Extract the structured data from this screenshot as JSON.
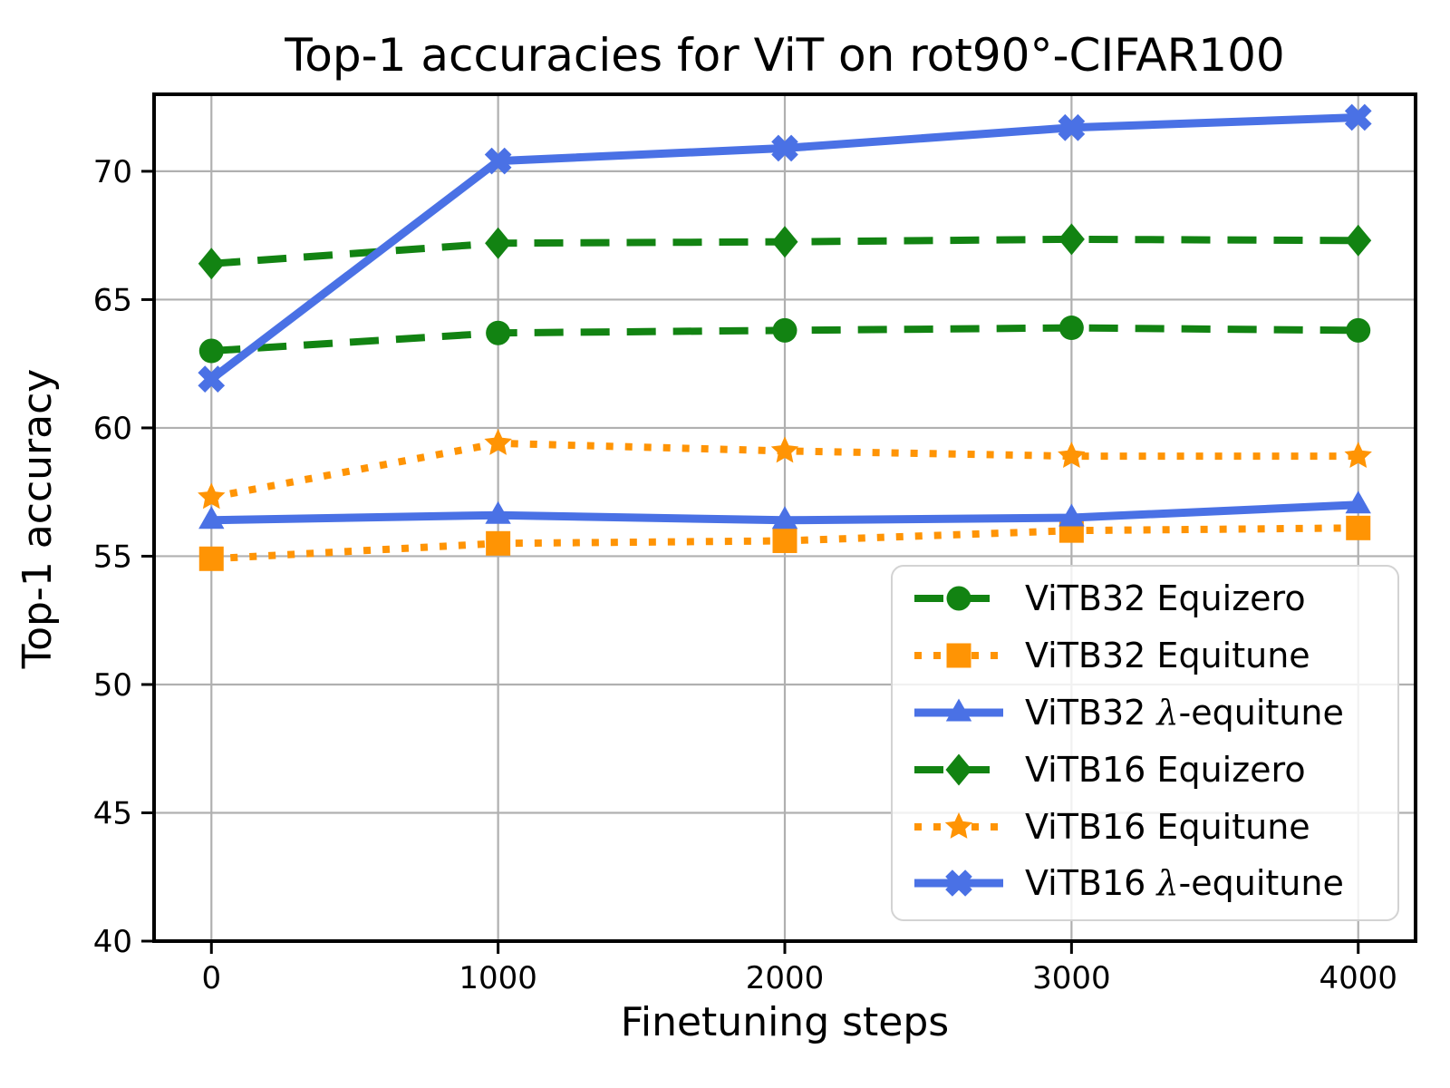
{
  "chart_data": {
    "type": "line",
    "title": "Top-1 accuracies for ViT on rot90°-CIFAR100",
    "xlabel": "Finetuning steps",
    "ylabel": "Top-1 accuracy",
    "x": [
      0,
      1000,
      2000,
      3000,
      4000
    ],
    "x_ticks": [
      "0",
      "1000",
      "2000",
      "3000",
      "4000"
    ],
    "y_ticks": [
      40,
      45,
      50,
      55,
      60,
      65,
      70
    ],
    "xlim": [
      -200,
      4200
    ],
    "ylim": [
      40,
      73
    ],
    "grid": true,
    "grid_color": "#b0b0b0",
    "legend_location": "lower right",
    "series": [
      {
        "name": "ViTB32 Equizero",
        "color": "#128312",
        "linestyle": "dashed",
        "marker": "circle",
        "values": [
          63.0,
          63.7,
          63.8,
          63.9,
          63.8
        ]
      },
      {
        "name": "ViTB32 Equitune",
        "color": "#ff9404",
        "linestyle": "dotted",
        "marker": "square",
        "values": [
          54.9,
          55.5,
          55.6,
          56.0,
          56.1
        ]
      },
      {
        "name": "ViTB32 λ-equitune",
        "color": "#4a71e5",
        "linestyle": "solid",
        "marker": "triangle-up",
        "values": [
          56.4,
          56.6,
          56.4,
          56.5,
          57.0
        ]
      },
      {
        "name": "ViTB16 Equizero",
        "color": "#128312",
        "linestyle": "dashed",
        "marker": "diamond",
        "values": [
          66.4,
          67.2,
          67.25,
          67.35,
          67.3
        ]
      },
      {
        "name": "ViTB16 Equitune",
        "color": "#ff9404",
        "linestyle": "dotted",
        "marker": "star",
        "values": [
          57.3,
          59.4,
          59.1,
          58.9,
          58.9
        ]
      },
      {
        "name": "ViTB16 λ-equitune",
        "color": "#4a71e5",
        "linestyle": "solid",
        "marker": "x-filled",
        "values": [
          61.9,
          70.4,
          70.9,
          71.7,
          72.1
        ]
      }
    ]
  }
}
